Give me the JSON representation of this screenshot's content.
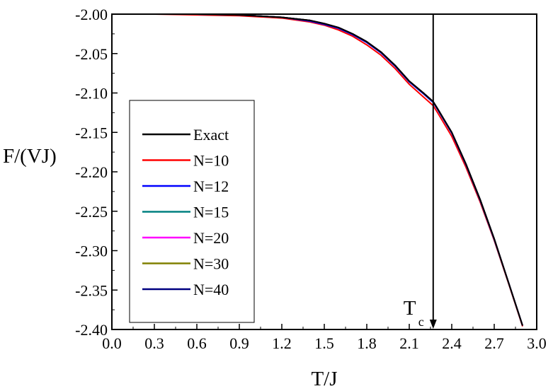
{
  "chart_data": {
    "type": "line",
    "title": "",
    "xlabel": "T/J",
    "ylabel": "F/(VJ)",
    "xlim": [
      0.0,
      3.0
    ],
    "ylim": [
      -2.4,
      -2.0
    ],
    "x_ticks": [
      "0.0",
      "0.3",
      "0.6",
      "0.9",
      "1.2",
      "1.5",
      "1.8",
      "2.1",
      "2.4",
      "2.7",
      "3.0"
    ],
    "y_ticks": [
      "-2.00",
      "-2.05",
      "-2.10",
      "-2.15",
      "-2.20",
      "-2.25",
      "-2.30",
      "-2.35",
      "-2.40"
    ],
    "grid": false,
    "legend_position": "left",
    "x": [
      0.0,
      0.3,
      0.6,
      0.9,
      1.0,
      1.2,
      1.4,
      1.5,
      1.6,
      1.7,
      1.8,
      1.9,
      2.0,
      2.1,
      2.2,
      2.269,
      2.3,
      2.4,
      2.5,
      2.6,
      2.7,
      2.8,
      2.9
    ],
    "series": [
      {
        "name": "Exact",
        "color": "#000000",
        "values": [
          -2.0,
          -2.0,
          -2.0,
          -2.001,
          -2.002,
          -2.004,
          -2.008,
          -2.012,
          -2.017,
          -2.025,
          -2.035,
          -2.048,
          -2.065,
          -2.085,
          -2.1,
          -2.111,
          -2.12,
          -2.15,
          -2.19,
          -2.235,
          -2.285,
          -2.34,
          -2.395
        ]
      },
      {
        "name": "N=10",
        "color": "#ff0000",
        "values": [
          -2.0,
          -2.0,
          -2.001,
          -2.002,
          -2.003,
          -2.005,
          -2.01,
          -2.014,
          -2.02,
          -2.028,
          -2.039,
          -2.052,
          -2.069,
          -2.089,
          -2.105,
          -2.116,
          -2.125,
          -2.155,
          -2.194,
          -2.238,
          -2.287,
          -2.341,
          -2.396
        ]
      },
      {
        "name": "N=12",
        "color": "#0000ff",
        "values": [
          -2.0,
          -2.0,
          -2.0,
          -2.001,
          -2.002,
          -2.004,
          -2.009,
          -2.013,
          -2.018,
          -2.026,
          -2.036,
          -2.049,
          -2.066,
          -2.086,
          -2.101,
          -2.112,
          -2.121,
          -2.151,
          -2.191,
          -2.236,
          -2.286,
          -2.34,
          -2.395
        ]
      },
      {
        "name": "N=15",
        "color": "#008080",
        "values": [
          -2.0,
          -2.0,
          -2.0,
          -2.001,
          -2.002,
          -2.004,
          -2.008,
          -2.012,
          -2.017,
          -2.025,
          -2.035,
          -2.048,
          -2.065,
          -2.085,
          -2.1,
          -2.111,
          -2.12,
          -2.15,
          -2.19,
          -2.235,
          -2.285,
          -2.34,
          -2.395
        ]
      },
      {
        "name": "N=20",
        "color": "#ff00ff",
        "values": [
          -2.0,
          -2.0,
          -2.0,
          -2.001,
          -2.002,
          -2.004,
          -2.008,
          -2.012,
          -2.017,
          -2.025,
          -2.035,
          -2.048,
          -2.065,
          -2.085,
          -2.1,
          -2.111,
          -2.12,
          -2.15,
          -2.19,
          -2.235,
          -2.285,
          -2.34,
          -2.395
        ]
      },
      {
        "name": "N=30",
        "color": "#808000",
        "values": [
          -2.0,
          -2.0,
          -2.0,
          -2.001,
          -2.002,
          -2.004,
          -2.008,
          -2.012,
          -2.017,
          -2.025,
          -2.035,
          -2.048,
          -2.065,
          -2.085,
          -2.1,
          -2.111,
          -2.12,
          -2.15,
          -2.19,
          -2.235,
          -2.285,
          -2.34,
          -2.395
        ]
      },
      {
        "name": "N=40",
        "color": "#000080",
        "values": [
          -2.0,
          -2.0,
          -2.0,
          -2.001,
          -2.002,
          -2.004,
          -2.008,
          -2.012,
          -2.017,
          -2.025,
          -2.035,
          -2.048,
          -2.065,
          -2.085,
          -2.1,
          -2.111,
          -2.12,
          -2.15,
          -2.19,
          -2.235,
          -2.285,
          -2.34,
          -2.395
        ]
      }
    ],
    "annotations": [
      {
        "label": "T",
        "subscript": "c",
        "x": 2.269,
        "type": "vertical-arrow"
      }
    ]
  }
}
